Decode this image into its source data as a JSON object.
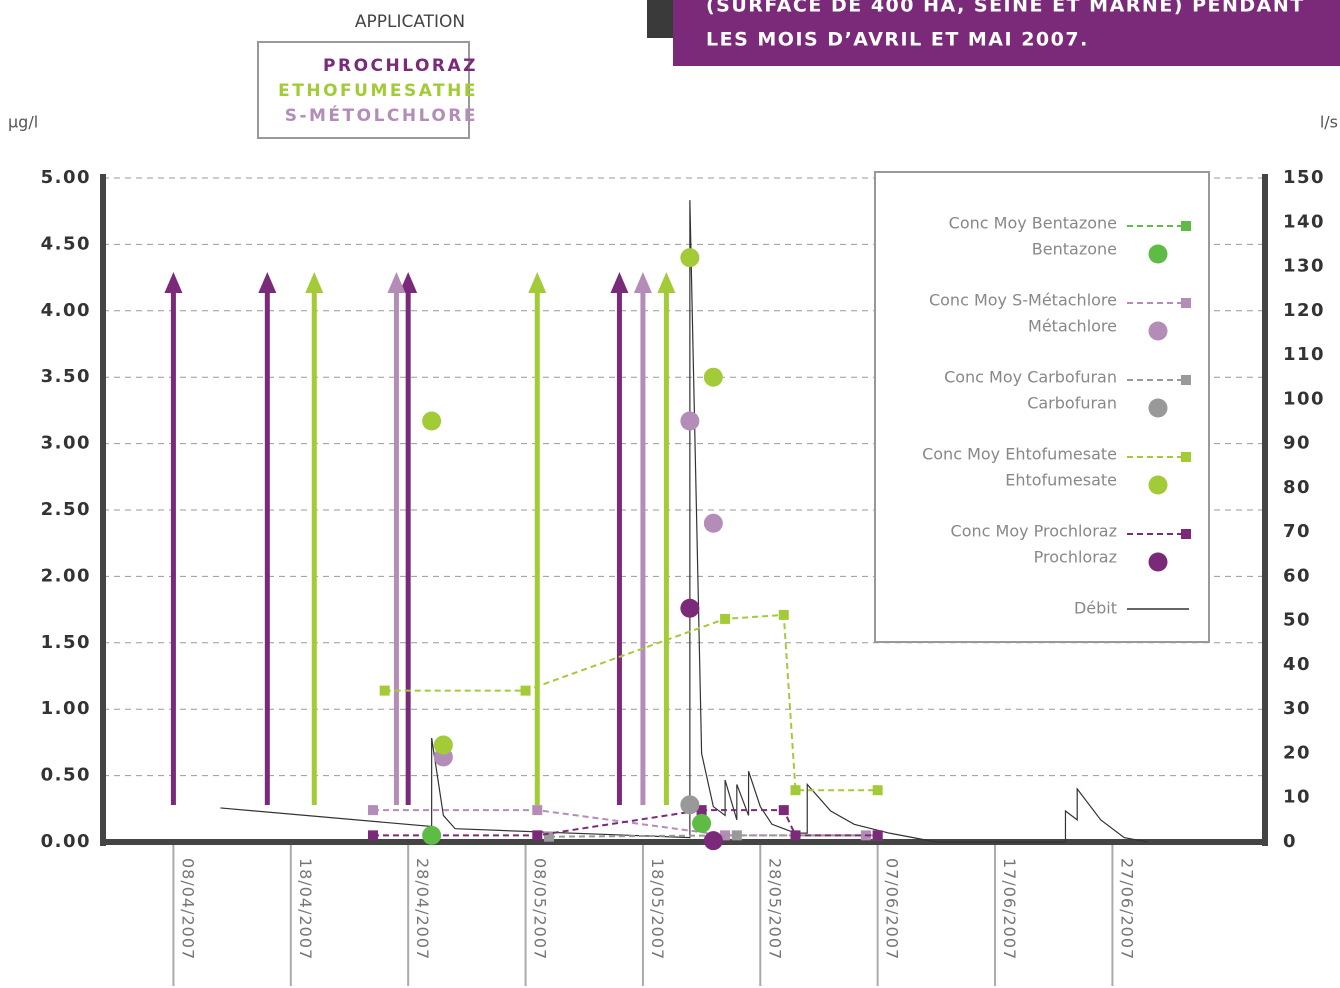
{
  "chart_data": {
    "type": "line",
    "title": [
      "(SURFACE DE 400 HA, SEINE ET MARNE) PENDANT",
      "LES MOIS D’AVRIL ET MAI 2007."
    ],
    "application_title": "APPLICATION",
    "applications": [
      {
        "name": "PROCHLORAZ",
        "color": "#7b2a7a",
        "dates": [
          "2007-04-08",
          "2007-04-16",
          "2007-04-28",
          "2007-05-16"
        ]
      },
      {
        "name": "ETHOFUMESATHE",
        "color": "#a3cb38",
        "dates": [
          "2007-04-20",
          "2007-05-09",
          "2007-05-20"
        ]
      },
      {
        "name": "S-MÉTOLCHLORE",
        "color": "#b48cb8",
        "dates": [
          "2007-04-27",
          "2007-05-18"
        ]
      }
    ],
    "ylabel": "µg/l",
    "y2label": "l/s",
    "xlim": [
      "2007-04-02",
      "2007-07-10"
    ],
    "xticks": [
      {
        "value": "2007-04-08",
        "label": "08/04/2007"
      },
      {
        "value": "2007-04-18",
        "label": "18/04/2007"
      },
      {
        "value": "2007-04-28",
        "label": "28/04/2007"
      },
      {
        "value": "2007-05-08",
        "label": "08/05/2007"
      },
      {
        "value": "2007-05-18",
        "label": "18/05/2007"
      },
      {
        "value": "2007-05-28",
        "label": "28/05/2007"
      },
      {
        "value": "2007-06-07",
        "label": "07/06/2007"
      },
      {
        "value": "2007-06-17",
        "label": "17/06/2007"
      },
      {
        "value": "2007-06-27",
        "label": "27/06/2007"
      }
    ],
    "ylim": [
      0,
      5
    ],
    "yticks": [
      {
        "value": 0,
        "label": "0.00"
      },
      {
        "value": 0.5,
        "label": "0.50"
      },
      {
        "value": 1,
        "label": "1.00"
      },
      {
        "value": 1.5,
        "label": "1.50"
      },
      {
        "value": 2,
        "label": "2.00"
      },
      {
        "value": 2.5,
        "label": "2.50"
      },
      {
        "value": 3,
        "label": "3.00"
      },
      {
        "value": 3.5,
        "label": "3.50"
      },
      {
        "value": 4,
        "label": "4.00"
      },
      {
        "value": 4.5,
        "label": "4.50"
      },
      {
        "value": 5,
        "label": "5.00"
      }
    ],
    "y2lim": [
      0,
      150
    ],
    "y2ticks": [
      0,
      10,
      20,
      30,
      40,
      50,
      60,
      70,
      80,
      90,
      100,
      110,
      120,
      130,
      140,
      150
    ],
    "grid": true,
    "legend": "upper right",
    "series": [
      {
        "name": "Conc Moy Bentazone",
        "kind": "dashed",
        "color": "#5dbb46",
        "x": [],
        "values": []
      },
      {
        "name": "Bentazone",
        "kind": "points",
        "color": "#5dbb46",
        "x": [
          "2007-04-30",
          "2007-05-23"
        ],
        "values": [
          0.05,
          0.14
        ]
      },
      {
        "name": "Conc Moy S-Métachlore",
        "kind": "dashed",
        "color": "#b48cb8",
        "x": [
          "2007-04-25",
          "2007-05-09",
          "2007-05-25",
          "2007-06-06"
        ],
        "values": [
          0.24,
          0.24,
          0.05,
          0.05
        ]
      },
      {
        "name": "Métachlore",
        "kind": "points",
        "color": "#b48cb8",
        "x": [
          "2007-05-01",
          "2007-05-22",
          "2007-05-24"
        ],
        "values": [
          0.64,
          3.17,
          2.4
        ]
      },
      {
        "name": "Conc Moy Carbofuran",
        "kind": "dashed",
        "color": "#999999",
        "x": [
          "2007-05-10",
          "2007-05-26",
          "2007-06-07"
        ],
        "values": [
          0.04,
          0.05,
          0.05
        ]
      },
      {
        "name": "Carbofuran",
        "kind": "points",
        "color": "#999999",
        "x": [
          "2007-05-22"
        ],
        "values": [
          0.28
        ]
      },
      {
        "name": "Conc Moy Ehtofumesate",
        "kind": "dashed",
        "color": "#a3cb38",
        "x": [
          "2007-04-26",
          "2007-05-08",
          "2007-05-25",
          "2007-05-30",
          "2007-05-31",
          "2007-06-07"
        ],
        "values": [
          1.14,
          1.14,
          1.68,
          1.71,
          0.39,
          0.39
        ]
      },
      {
        "name": "Ehtofumesate",
        "kind": "points",
        "color": "#a3cb38",
        "x": [
          "2007-04-30",
          "2007-05-01",
          "2007-05-22",
          "2007-05-24"
        ],
        "values": [
          3.17,
          0.73,
          4.4,
          3.5
        ]
      },
      {
        "name": "Conc Moy Prochloraz",
        "kind": "dashed",
        "color": "#7b2a7a",
        "x": [
          "2007-04-25",
          "2007-05-09",
          "2007-05-23",
          "2007-05-30",
          "2007-05-31",
          "2007-06-07"
        ],
        "values": [
          0.05,
          0.05,
          0.24,
          0.24,
          0.05,
          0.05
        ]
      },
      {
        "name": "Prochloraz",
        "kind": "points",
        "color": "#7b2a7a",
        "x": [
          "2007-05-22",
          "2007-05-24"
        ],
        "values": [
          1.76,
          0.01
        ]
      },
      {
        "name": "Débit",
        "kind": "solid",
        "axis": "y2",
        "color": "#333333",
        "x": [
          "2007-04-12",
          "2007-04-30",
          "2007-04-30",
          "2007-05-01",
          "2007-05-02",
          "2007-05-22",
          "2007-05-22",
          "2007-05-23",
          "2007-05-24",
          "2007-05-25",
          "2007-05-25",
          "2007-05-26",
          "2007-05-26",
          "2007-05-27",
          "2007-05-27",
          "2007-05-28",
          "2007-05-29",
          "2007-05-30",
          "2007-05-31",
          "2007-06-01",
          "2007-06-01",
          "2007-06-03",
          "2007-06-05",
          "2007-06-08",
          "2007-06-12",
          "2007-06-23",
          "2007-06-23",
          "2007-06-24",
          "2007-06-24",
          "2007-06-26",
          "2007-06-28",
          "2007-06-30"
        ],
        "values": [
          7.7,
          3.5,
          23.5,
          6,
          3,
          1,
          145,
          20,
          8,
          6,
          14,
          5,
          13,
          6,
          16,
          8,
          4,
          3,
          2,
          2,
          13,
          7,
          4,
          2,
          0,
          0,
          7,
          5,
          12,
          5,
          1,
          0
        ]
      }
    ]
  }
}
